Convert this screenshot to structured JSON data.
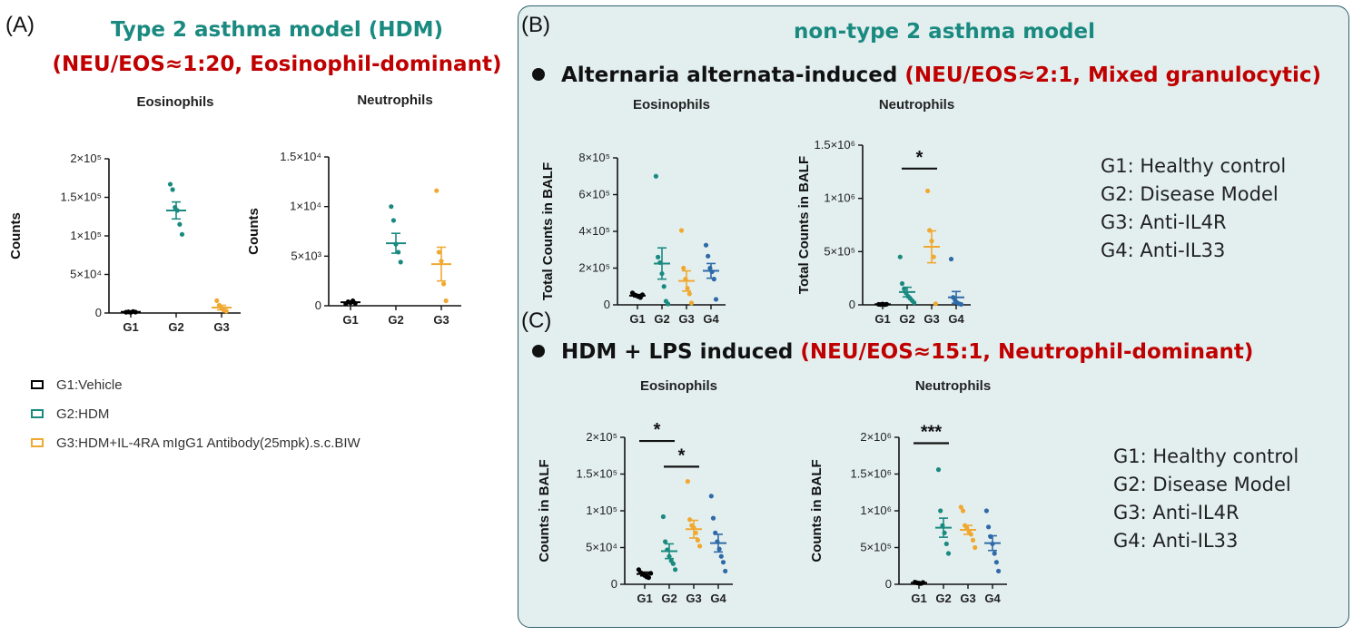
{
  "panel_a": {
    "label": "(A)",
    "title_line1": "Type 2 asthma model (HDM)",
    "title_line2": "(NEU/EOS≈1:20, Eosinophil-dominant)",
    "legend": [
      {
        "label": "G1:Vehicle",
        "color": "#000000"
      },
      {
        "label": "G2:HDM",
        "color": "#1a8a80"
      },
      {
        "label": "G3:HDM+IL-4RA mIgG1 Antibody(25mpk).s.c.BIW",
        "color": "#f0a830"
      }
    ]
  },
  "panel_b": {
    "label": "(B)",
    "title": "non-type 2 asthma model",
    "bullet_black": "Alternaria alternata-induced",
    "bullet_red": "(NEU/EOS≈2:1, Mixed granulocytic)"
  },
  "panel_c": {
    "label": "(C)",
    "bullet_black": "HDM + LPS induced",
    "bullet_red": "(NEU/EOS≈15:1, Neutrophil-dominant)"
  },
  "group_legend_b": [
    "G1: Healthy control",
    "G2: Disease Model",
    "G3: Anti-IL4R",
    "G4: Anti-IL33"
  ],
  "group_legend_c": [
    "G1: Healthy control",
    "G2: Disease Model",
    "G3: Anti-IL4R",
    "G4: Anti-IL33"
  ],
  "colors": {
    "g1": "#000000",
    "g2": "#1a8a80",
    "g3": "#f0a830",
    "g4": "#2f6aa8",
    "teal_title": "#1a8a80",
    "red_title": "#c00000",
    "panel_bg": "#e3efef"
  },
  "chart_data": [
    {
      "id": "a_eos",
      "type": "scatter",
      "title": "Eosinophils",
      "ylabel": "Counts",
      "ylim": [
        0,
        200000
      ],
      "yticks": [
        {
          "v": 0,
          "label": "0"
        },
        {
          "v": 50000,
          "label": "5×10⁴"
        },
        {
          "v": 100000,
          "label": "1×10⁵"
        },
        {
          "v": 150000,
          "label": "1.5×10⁵"
        },
        {
          "v": 200000,
          "label": "2×10⁵"
        }
      ],
      "categories": [
        "G1",
        "G2",
        "G3"
      ],
      "series": [
        {
          "group": "G1",
          "mean": 1500,
          "sem": 500,
          "points": [
            1000,
            1500,
            800,
            2000,
            1200
          ]
        },
        {
          "group": "G2",
          "mean": 133000,
          "sem": 11000,
          "points": [
            167000,
            160000,
            137000,
            133000,
            115000,
            102000
          ]
        },
        {
          "group": "G3",
          "mean": 7000,
          "sem": 3000,
          "points": [
            16000,
            10000,
            6000,
            3500,
            2500
          ]
        }
      ],
      "significance": []
    },
    {
      "id": "a_neu",
      "type": "scatter",
      "title": "Neutrophils",
      "ylabel": "Counts",
      "ylim": [
        0,
        15000
      ],
      "yticks": [
        {
          "v": 0,
          "label": "0"
        },
        {
          "v": 5000,
          "label": "5×10³"
        },
        {
          "v": 10000,
          "label": "1×10⁴"
        },
        {
          "v": 15000,
          "label": "1.5×10⁴"
        }
      ],
      "categories": [
        "G1",
        "G2",
        "G3"
      ],
      "series": [
        {
          "group": "G1",
          "mean": 350,
          "sem": 100,
          "points": [
            200,
            400,
            300,
            500,
            250
          ]
        },
        {
          "group": "G2",
          "mean": 6300,
          "sem": 1000,
          "points": [
            10000,
            8600,
            6200,
            5400,
            4400
          ]
        },
        {
          "group": "G3",
          "mean": 4200,
          "sem": 1700,
          "points": [
            11600,
            5400,
            4500,
            2200,
            500
          ]
        }
      ],
      "significance": []
    },
    {
      "id": "b_eos",
      "type": "scatter",
      "title": "Eosinophils",
      "ylabel": "Total Counts in BALF",
      "ylim": [
        0,
        800000
      ],
      "yticks": [
        {
          "v": 0,
          "label": "0"
        },
        {
          "v": 200000,
          "label": "2×10⁵"
        },
        {
          "v": 400000,
          "label": "4×10⁵"
        },
        {
          "v": 600000,
          "label": "6×10⁵"
        },
        {
          "v": 800000,
          "label": "8×10⁵"
        }
      ],
      "categories": [
        "G1",
        "G2",
        "G3",
        "G4"
      ],
      "series": [
        {
          "group": "G1",
          "mean": 50000,
          "sem": 6000,
          "points": [
            65000,
            55000,
            50000,
            45000,
            40000,
            55000
          ]
        },
        {
          "group": "G2",
          "mean": 225000,
          "sem": 85000,
          "points": [
            700000,
            260000,
            230000,
            170000,
            100000,
            20000,
            5000
          ]
        },
        {
          "group": "G3",
          "mean": 130000,
          "sem": 55000,
          "points": [
            405000,
            200000,
            140000,
            90000,
            60000,
            10000
          ]
        },
        {
          "group": "G4",
          "mean": 185000,
          "sem": 40000,
          "points": [
            325000,
            265000,
            200000,
            180000,
            140000,
            30000
          ]
        }
      ],
      "significance": []
    },
    {
      "id": "b_neu",
      "type": "scatter",
      "title": "Neutrophils",
      "ylabel": "Total Counts in BALF",
      "ylim": [
        0,
        1500000
      ],
      "yticks": [
        {
          "v": 0,
          "label": "0"
        },
        {
          "v": 500000,
          "label": "5×10⁵"
        },
        {
          "v": 1000000,
          "label": "1×10⁶"
        },
        {
          "v": 1500000,
          "label": "1.5×10⁶"
        }
      ],
      "categories": [
        "G1",
        "G2",
        "G3",
        "G4"
      ],
      "series": [
        {
          "group": "G1",
          "mean": 5000,
          "sem": 2000,
          "points": [
            5000,
            3000,
            8000,
            2000,
            6000
          ]
        },
        {
          "group": "G2",
          "mean": 120000,
          "sem": 45000,
          "points": [
            450000,
            200000,
            150000,
            110000,
            80000,
            60000,
            40000,
            20000
          ]
        },
        {
          "group": "G3",
          "mean": 545000,
          "sem": 150000,
          "points": [
            1070000,
            700000,
            600000,
            450000,
            10000
          ]
        },
        {
          "group": "G4",
          "mean": 70000,
          "sem": 55000,
          "points": [
            430000,
            70000,
            40000,
            20000,
            10000,
            5000
          ]
        }
      ],
      "significance": [
        {
          "from": 1,
          "to": 2,
          "y": 1280000,
          "label": "*"
        }
      ]
    },
    {
      "id": "c_eos",
      "type": "scatter",
      "title": "Eosinophils",
      "ylabel": "Counts in BALF",
      "ylim": [
        0,
        200000
      ],
      "yticks": [
        {
          "v": 0,
          "label": "0"
        },
        {
          "v": 50000,
          "label": "5×10⁴"
        },
        {
          "v": 100000,
          "label": "1×10⁵"
        },
        {
          "v": 150000,
          "label": "1.5×10⁵"
        },
        {
          "v": 200000,
          "label": "2×10⁵"
        }
      ],
      "categories": [
        "G1",
        "G2",
        "G3",
        "G4"
      ],
      "series": [
        {
          "group": "G1",
          "mean": 14000,
          "sem": 2500,
          "points": [
            20000,
            16000,
            14000,
            12000,
            10000,
            9000,
            15000
          ]
        },
        {
          "group": "G2",
          "mean": 45000,
          "sem": 10000,
          "points": [
            92000,
            58000,
            47000,
            38000,
            32000,
            28000,
            20000
          ]
        },
        {
          "group": "G3",
          "mean": 75000,
          "sem": 12000,
          "points": [
            140000,
            88000,
            80000,
            77000,
            70000,
            60000,
            52000
          ]
        },
        {
          "group": "G4",
          "mean": 56000,
          "sem": 12000,
          "points": [
            120000,
            90000,
            70000,
            58000,
            48000,
            38000,
            30000,
            18000
          ]
        }
      ],
      "significance": [
        {
          "from": 0,
          "to": 1,
          "y": 195000,
          "label": "*"
        },
        {
          "from": 1,
          "to": 2,
          "y": 160000,
          "label": "*"
        }
      ]
    },
    {
      "id": "c_neu",
      "type": "scatter",
      "title": "Neutrophils",
      "ylabel": "Counts in BALF",
      "ylim": [
        0,
        2000000
      ],
      "yticks": [
        {
          "v": 0,
          "label": "0"
        },
        {
          "v": 500000,
          "label": "5×10⁵"
        },
        {
          "v": 1000000,
          "label": "1×10⁶"
        },
        {
          "v": 1500000,
          "label": "1.5×10⁶"
        },
        {
          "v": 2000000,
          "label": "2×10⁶"
        }
      ],
      "categories": [
        "G1",
        "G2",
        "G3",
        "G4"
      ],
      "series": [
        {
          "group": "G1",
          "mean": 20000,
          "sem": 5000,
          "points": [
            30000,
            20000,
            15000,
            10000,
            25000
          ]
        },
        {
          "group": "G2",
          "mean": 770000,
          "sem": 130000,
          "points": [
            1560000,
            1000000,
            800000,
            700000,
            550000,
            420000
          ]
        },
        {
          "group": "G3",
          "mean": 740000,
          "sem": 60000,
          "points": [
            1050000,
            1000000,
            800000,
            760000,
            720000,
            680000,
            600000,
            500000
          ]
        },
        {
          "group": "G4",
          "mean": 560000,
          "sem": 100000,
          "points": [
            1000000,
            780000,
            650000,
            550000,
            420000,
            300000,
            180000
          ]
        }
      ],
      "significance": [
        {
          "from": 0,
          "to": 1,
          "y": 1920000,
          "label": "***"
        }
      ]
    }
  ]
}
